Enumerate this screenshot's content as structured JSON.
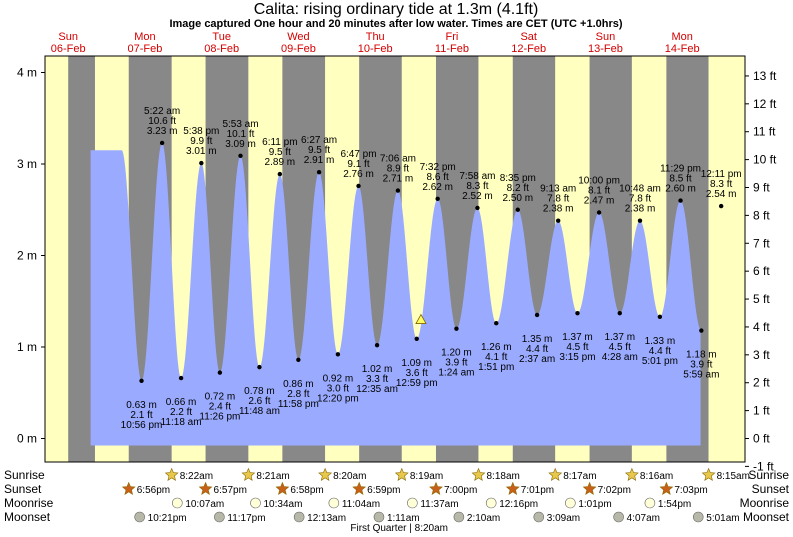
{
  "title": "Calita: rising  ordinary tide at 1.3m (4.1ft)",
  "subtitle": "Image captured One hour and 20 minutes after low water. Times are CET (UTC +1.0hrs)",
  "days": [
    {
      "dow": "Sun",
      "date": "06-Feb"
    },
    {
      "dow": "Mon",
      "date": "07-Feb"
    },
    {
      "dow": "Tue",
      "date": "08-Feb"
    },
    {
      "dow": "Wed",
      "date": "09-Feb"
    },
    {
      "dow": "Thu",
      "date": "10-Feb"
    },
    {
      "dow": "Fri",
      "date": "11-Feb"
    },
    {
      "dow": "Sat",
      "date": "12-Feb"
    },
    {
      "dow": "Sun",
      "date": "13-Feb"
    },
    {
      "dow": "Mon",
      "date": "14-Feb"
    }
  ],
  "left_axis_labels": [
    "0 m",
    "1 m",
    "2 m",
    "3 m",
    "4 m"
  ],
  "right_axis_labels": [
    "-1 ft",
    "0 ft",
    "1 ft",
    "2 ft",
    "3 ft",
    "4 ft",
    "5 ft",
    "6 ft",
    "7 ft",
    "8 ft",
    "9 ft",
    "10 ft",
    "11 ft",
    "12 ft",
    "13 ft"
  ],
  "chart_data": {
    "type": "area",
    "title": "Calita: rising  ordinary tide at 1.3m (4.1ft)",
    "ylabel_left": "m",
    "ylabel_right": "ft",
    "ylim_m": [
      -0.3,
      4.1
    ],
    "current_level_m": 1.3,
    "events": [
      {
        "type": "low",
        "day": 0,
        "time": "10:56 pm",
        "m": "0.63 m",
        "ft": "2.1 ft",
        "hours": 22.93,
        "value": 0.63
      },
      {
        "type": "high",
        "day": 1,
        "time": "5:22 am",
        "m": "3.23 m",
        "ft": "10.6 ft",
        "hours": 29.37,
        "value": 3.23
      },
      {
        "type": "low",
        "day": 1,
        "time": "11:18 am",
        "m": "0.66 m",
        "ft": "2.2 ft",
        "hours": 35.3,
        "value": 0.66
      },
      {
        "type": "high",
        "day": 1,
        "time": "5:38 pm",
        "m": "3.01 m",
        "ft": "9.9 ft",
        "hours": 41.63,
        "value": 3.01
      },
      {
        "type": "low",
        "day": 1,
        "time": "11:26 pm",
        "m": "0.72 m",
        "ft": "2.4 ft",
        "hours": 47.43,
        "value": 0.72
      },
      {
        "type": "high",
        "day": 2,
        "time": "5:53 am",
        "m": "3.09 m",
        "ft": "10.1 ft",
        "hours": 53.88,
        "value": 3.09
      },
      {
        "type": "low",
        "day": 2,
        "time": "11:48 am",
        "m": "0.78 m",
        "ft": "2.6 ft",
        "hours": 59.8,
        "value": 0.78
      },
      {
        "type": "high",
        "day": 2,
        "time": "6:11 pm",
        "m": "2.89 m",
        "ft": "9.5 ft",
        "hours": 66.18,
        "value": 2.89
      },
      {
        "type": "low",
        "day": 2,
        "time": "11:58 pm",
        "m": "0.86 m",
        "ft": "2.8 ft",
        "hours": 71.97,
        "value": 0.86
      },
      {
        "type": "high",
        "day": 3,
        "time": "6:27 am",
        "m": "2.91 m",
        "ft": "9.5 ft",
        "hours": 78.45,
        "value": 2.91
      },
      {
        "type": "low",
        "day": 3,
        "time": "12:20 pm",
        "m": "0.92 m",
        "ft": "3.0 ft",
        "hours": 84.33,
        "value": 0.92
      },
      {
        "type": "high",
        "day": 3,
        "time": "6:47 pm",
        "m": "2.76 m",
        "ft": "9.1 ft",
        "hours": 90.78,
        "value": 2.76
      },
      {
        "type": "low",
        "day": 4,
        "time": "12:35 am",
        "m": "1.02 m",
        "ft": "3.3 ft",
        "hours": 96.58,
        "value": 1.02
      },
      {
        "type": "high",
        "day": 4,
        "time": "7:06 am",
        "m": "2.71 m",
        "ft": "8.9 ft",
        "hours": 103.1,
        "value": 2.71
      },
      {
        "type": "low",
        "day": 4,
        "time": "12:59 pm",
        "m": "1.09 m",
        "ft": "3.6 ft",
        "hours": 108.98,
        "value": 1.09
      },
      {
        "type": "high",
        "day": 4,
        "time": "7:32 pm",
        "m": "2.62 m",
        "ft": "8.6 ft",
        "hours": 115.53,
        "value": 2.62
      },
      {
        "type": "low",
        "day": 5,
        "time": "1:24 am",
        "m": "1.20 m",
        "ft": "3.9 ft",
        "hours": 121.4,
        "value": 1.2
      },
      {
        "type": "high",
        "day": 5,
        "time": "7:58 am",
        "m": "2.52 m",
        "ft": "8.3 ft",
        "hours": 127.97,
        "value": 2.52
      },
      {
        "type": "low",
        "day": 5,
        "time": "1:51 pm",
        "m": "1.26 m",
        "ft": "4.1 ft",
        "hours": 133.85,
        "value": 1.26
      },
      {
        "type": "high",
        "day": 5,
        "time": "8:35 pm",
        "m": "2.50 m",
        "ft": "8.2 ft",
        "hours": 140.58,
        "value": 2.5
      },
      {
        "type": "low",
        "day": 6,
        "time": "2:37 am",
        "m": "1.35 m",
        "ft": "4.4 ft",
        "hours": 146.62,
        "value": 1.35
      },
      {
        "type": "high",
        "day": 6,
        "time": "9:13 am",
        "m": "2.38 m",
        "ft": "7.8 ft",
        "hours": 153.22,
        "value": 2.38
      },
      {
        "type": "low",
        "day": 6,
        "time": "3:15 pm",
        "m": "1.37 m",
        "ft": "4.5 ft",
        "hours": 159.25,
        "value": 1.37
      },
      {
        "type": "high",
        "day": 6,
        "time": "10:00 pm",
        "m": "2.47 m",
        "ft": "8.1 ft",
        "hours": 166.0,
        "value": 2.47
      },
      {
        "type": "low",
        "day": 7,
        "time": "4:28 am",
        "m": "1.37 m",
        "ft": "4.5 ft",
        "hours": 172.47,
        "value": 1.37
      },
      {
        "type": "high",
        "day": 7,
        "time": "10:48 am",
        "m": "2.38 m",
        "ft": "7.8 ft",
        "hours": 178.8,
        "value": 2.38
      },
      {
        "type": "low",
        "day": 7,
        "time": "5:01 pm",
        "m": "1.33 m",
        "ft": "4.4 ft",
        "hours": 185.02,
        "value": 1.33
      },
      {
        "type": "high",
        "day": 7,
        "time": "11:29 pm",
        "m": "2.60 m",
        "ft": "8.5 ft",
        "hours": 191.48,
        "value": 2.6
      },
      {
        "type": "low",
        "day": 8,
        "time": "5:59 am",
        "m": "1.18 m",
        "ft": "3.9 ft",
        "hours": 197.98,
        "value": 1.18
      },
      {
        "type": "high",
        "day": 8,
        "time": "12:11 pm",
        "m": "2.54 m",
        "ft": "8.3 ft",
        "hours": 204.18,
        "value": 2.54
      }
    ],
    "nights": [
      {
        "start": 0,
        "end": 8.37
      },
      {
        "start": 18.93,
        "end": 32.35
      },
      {
        "start": 42.95,
        "end": 56.33
      },
      {
        "start": 66.97,
        "end": 80.32
      },
      {
        "start": 90.98,
        "end": 104.3
      },
      {
        "start": 115.0,
        "end": 128.28
      },
      {
        "start": 139.02,
        "end": 152.27
      },
      {
        "start": 163.03,
        "end": 176.25
      },
      {
        "start": 187.05,
        "end": 200.23
      }
    ]
  },
  "rows": {
    "sunrise": {
      "label": "Sunrise",
      "items": [
        {
          "t": "8:22am",
          "h": 32.37
        },
        {
          "t": "8:21am",
          "h": 56.35
        },
        {
          "t": "8:20am",
          "h": 80.33
        },
        {
          "t": "8:19am",
          "h": 104.32
        },
        {
          "t": "8:18am",
          "h": 128.3
        },
        {
          "t": "8:17am",
          "h": 152.28
        },
        {
          "t": "8:16am",
          "h": 176.27
        },
        {
          "t": "8:15am",
          "h": 200.25
        }
      ]
    },
    "sunset": {
      "label": "Sunset",
      "items": [
        {
          "t": "6:56pm",
          "h": 18.93
        },
        {
          "t": "6:57pm",
          "h": 42.95
        },
        {
          "t": "6:58pm",
          "h": 66.97
        },
        {
          "t": "6:59pm",
          "h": 90.98
        },
        {
          "t": "7:00pm",
          "h": 115.0
        },
        {
          "t": "7:01pm",
          "h": 139.02
        },
        {
          "t": "7:02pm",
          "h": 163.03
        },
        {
          "t": "7:03pm",
          "h": 187.05
        }
      ]
    },
    "moonrise": {
      "label": "Moonrise",
      "items": [
        {
          "t": "10:07am",
          "h": 34.12
        },
        {
          "t": "10:34am",
          "h": 58.57
        },
        {
          "t": "11:04am",
          "h": 83.07
        },
        {
          "t": "11:37am",
          "h": 107.62
        },
        {
          "t": "12:16pm",
          "h": 132.27
        },
        {
          "t": "1:01pm",
          "h": 157.02
        },
        {
          "t": "1:54pm",
          "h": 181.9
        }
      ]
    },
    "moonset": {
      "label": "Moonset",
      "items": [
        {
          "t": "10:21pm",
          "h": 22.35
        },
        {
          "t": "11:17pm",
          "h": 47.28
        },
        {
          "t": "12:13am",
          "h": 72.22
        },
        {
          "t": "1:11am",
          "h": 97.18
        },
        {
          "t": "2:10am",
          "h": 122.17
        },
        {
          "t": "3:09am",
          "h": 147.15
        },
        {
          "t": "4:07am",
          "h": 172.12
        },
        {
          "t": "5:01am",
          "h": 197.02
        }
      ]
    },
    "moon_phase": "First Quarter | 8:20am"
  },
  "colors": {
    "day": "#ffffc0",
    "night": "#888888",
    "water": "#9aabff",
    "sun": "#e8c84a",
    "sunset": "#c8601a",
    "moon": "#ffffd8",
    "moonset": "#b8b8a8",
    "day_label": "#d40000"
  }
}
